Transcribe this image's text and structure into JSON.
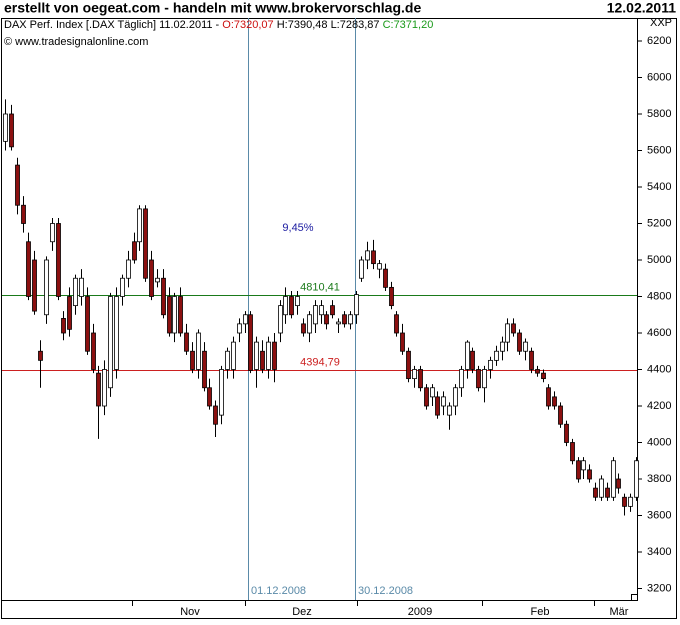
{
  "header": {
    "title": "erstellt von oegeat.com - handeln mit www.brokervorschlag.de",
    "date": "12.02.2011"
  },
  "chart_data": {
    "type": "candlestick",
    "info": [
      "DAX Perf. Index [.DAX  Täglich] 11.02.2011 -",
      "O:7320,07",
      "H:7390,48",
      "L:7283,87",
      "C:7371,20"
    ],
    "copyright": "© www.tradesignalonline.com",
    "axis_label": "XXP",
    "x_labels": [
      "Nov",
      "Dez",
      "2009",
      "Feb",
      "Mär"
    ],
    "up_color": "#ffffff",
    "down_color": "#8b1010",
    "ylim": [
      3137,
      6326
    ],
    "yticks": [
      3200,
      3400,
      3600,
      3800,
      4000,
      4200,
      4400,
      4600,
      4800,
      5000,
      5200,
      5400,
      5600,
      5800,
      6000,
      6200
    ],
    "levels": [
      {
        "value": 4810.41,
        "label": "4810,41",
        "color": "#1a7a1a"
      },
      {
        "value": 4394.79,
        "label": "4394,79",
        "color": "#cc2020"
      }
    ],
    "dates": [
      "01.12.2008",
      "30.12.2008"
    ],
    "change": "9,45%",
    "candles": [
      [
        5650,
        5880,
        5600,
        5800
      ],
      [
        5800,
        5850,
        5600,
        5620
      ],
      [
        5520,
        5560,
        5250,
        5300
      ],
      [
        5300,
        5350,
        5150,
        5200
      ],
      [
        5100,
        5150,
        4780,
        4800
      ],
      [
        5000,
        5050,
        4700,
        4720
      ],
      [
        4500,
        4560,
        4300,
        4450
      ],
      [
        4700,
        5020,
        4650,
        5000
      ],
      [
        5100,
        5230,
        5050,
        5200
      ],
      [
        5200,
        5230,
        4780,
        4800
      ],
      [
        4680,
        4720,
        4560,
        4600
      ],
      [
        4800,
        4850,
        4580,
        4620
      ],
      [
        4750,
        4920,
        4700,
        4900
      ],
      [
        4800,
        4950,
        4750,
        4900
      ],
      [
        4800,
        4850,
        4480,
        4500
      ],
      [
        4600,
        4650,
        4380,
        4400
      ],
      [
        4380,
        4420,
        4020,
        4200
      ],
      [
        4200,
        4450,
        4150,
        4400
      ],
      [
        4300,
        4820,
        4250,
        4800
      ],
      [
        4400,
        4850,
        4350,
        4800
      ],
      [
        4800,
        4920,
        4750,
        4900
      ],
      [
        4900,
        5050,
        4850,
        5000
      ],
      [
        5100,
        5150,
        4980,
        5000
      ],
      [
        5100,
        5300,
        5050,
        5280
      ],
      [
        5280,
        5300,
        4880,
        4900
      ],
      [
        5000,
        5050,
        4780,
        4800
      ],
      [
        4880,
        4950,
        4850,
        4900
      ],
      [
        4900,
        4950,
        4680,
        4700
      ],
      [
        4800,
        4850,
        4580,
        4600
      ],
      [
        4600,
        4820,
        4550,
        4800
      ],
      [
        4800,
        4850,
        4580,
        4600
      ],
      [
        4600,
        4650,
        4480,
        4500
      ],
      [
        4500,
        4550,
        4380,
        4400
      ],
      [
        4400,
        4620,
        4350,
        4600
      ],
      [
        4500,
        4550,
        4280,
        4300
      ],
      [
        4300,
        4350,
        4180,
        4200
      ],
      [
        4200,
        4230,
        4030,
        4100
      ],
      [
        4150,
        4420,
        4100,
        4400
      ],
      [
        4400,
        4520,
        4350,
        4500
      ],
      [
        4400,
        4580,
        4350,
        4550
      ],
      [
        4600,
        4680,
        4550,
        4650
      ],
      [
        4650,
        4720,
        4600,
        4700
      ],
      [
        4700,
        4720,
        4380,
        4394.79
      ],
      [
        4400,
        4580,
        4300,
        4550
      ],
      [
        4500,
        4560,
        4380,
        4400
      ],
      [
        4400,
        4580,
        4350,
        4550
      ],
      [
        4550,
        4600,
        4330,
        4400
      ],
      [
        4600,
        4780,
        4550,
        4750
      ],
      [
        4700,
        4850,
        4650,
        4800
      ],
      [
        4800,
        4830,
        4680,
        4700
      ],
      [
        4750,
        4830,
        4700,
        4800
      ],
      [
        4650,
        4680,
        4580,
        4600
      ],
      [
        4600,
        4720,
        4550,
        4700
      ],
      [
        4650,
        4780,
        4600,
        4750
      ],
      [
        4700,
        4780,
        4650,
        4750
      ],
      [
        4700,
        4720,
        4620,
        4650
      ],
      [
        4750,
        4780,
        4680,
        4700
      ],
      [
        4650,
        4680,
        4600,
        4660
      ],
      [
        4700,
        4720,
        4630,
        4650
      ],
      [
        4650,
        4720,
        4620,
        4700
      ],
      [
        4700,
        4830,
        4650,
        4810.41
      ],
      [
        4900,
        5020,
        4880,
        5000
      ],
      [
        5000,
        5100,
        4950,
        5050
      ],
      [
        5050,
        5110,
        4950,
        4980
      ],
      [
        4950,
        5000,
        4900,
        4980
      ],
      [
        4950,
        4980,
        4830,
        4850
      ],
      [
        4850,
        4880,
        4730,
        4750
      ],
      [
        4700,
        4720,
        4580,
        4600
      ],
      [
        4600,
        4650,
        4480,
        4500
      ],
      [
        4500,
        4520,
        4330,
        4350
      ],
      [
        4350,
        4420,
        4300,
        4400
      ],
      [
        4400,
        4420,
        4280,
        4300
      ],
      [
        4300,
        4320,
        4180,
        4200
      ],
      [
        4250,
        4320,
        4200,
        4300
      ],
      [
        4250,
        4280,
        4130,
        4150
      ],
      [
        4200,
        4280,
        4150,
        4250
      ],
      [
        4150,
        4220,
        4070,
        4200
      ],
      [
        4200,
        4320,
        4150,
        4300
      ],
      [
        4300,
        4420,
        4250,
        4400
      ],
      [
        4400,
        4560,
        4350,
        4550
      ],
      [
        4500,
        4520,
        4380,
        4400
      ],
      [
        4400,
        4420,
        4280,
        4300
      ],
      [
        4300,
        4420,
        4220,
        4400
      ],
      [
        4400,
        4470,
        4350,
        4450
      ],
      [
        4450,
        4530,
        4420,
        4500
      ],
      [
        4500,
        4580,
        4450,
        4550
      ],
      [
        4550,
        4680,
        4500,
        4650
      ],
      [
        4650,
        4680,
        4580,
        4600
      ],
      [
        4600,
        4620,
        4480,
        4500
      ],
      [
        4500,
        4570,
        4450,
        4550
      ],
      [
        4500,
        4520,
        4380,
        4400
      ],
      [
        4400,
        4420,
        4360,
        4380
      ],
      [
        4380,
        4400,
        4330,
        4350
      ],
      [
        4300,
        4320,
        4180,
        4200
      ],
      [
        4250,
        4280,
        4180,
        4200
      ],
      [
        4200,
        4220,
        4080,
        4100
      ],
      [
        4100,
        4120,
        3980,
        4000
      ],
      [
        4000,
        4020,
        3880,
        3900
      ],
      [
        3900,
        3920,
        3780,
        3800
      ],
      [
        3850,
        3920,
        3800,
        3900
      ],
      [
        3850,
        3880,
        3780,
        3800
      ],
      [
        3750,
        3780,
        3680,
        3700
      ],
      [
        3700,
        3820,
        3680,
        3800
      ],
      [
        3750,
        3780,
        3680,
        3700
      ],
      [
        3700,
        3920,
        3680,
        3900
      ],
      [
        3800,
        3830,
        3720,
        3750
      ],
      [
        3700,
        3720,
        3600,
        3650
      ],
      [
        3650,
        3720,
        3620,
        3700
      ],
      [
        3700,
        3920,
        3680,
        3900
      ]
    ]
  }
}
